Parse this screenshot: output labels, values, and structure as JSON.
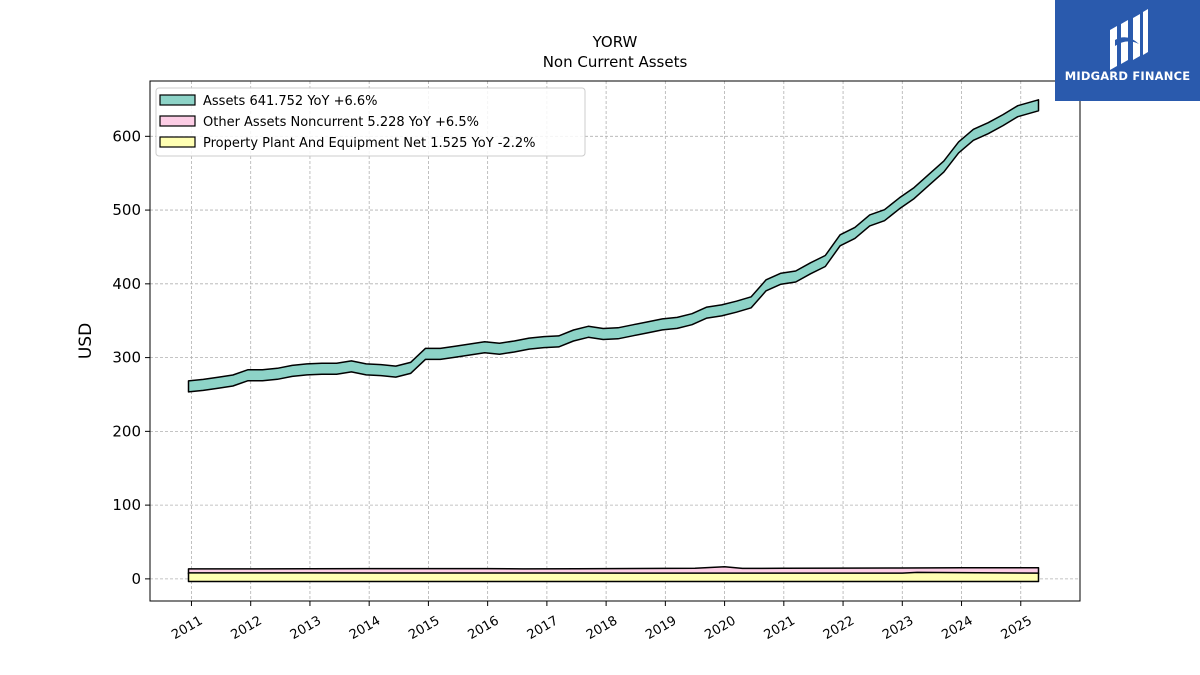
{
  "chart_data": {
    "type": "area",
    "title": "YORW",
    "subtitle": "Non Current  Assets",
    "ylabel": "USD",
    "xlabel": "",
    "ylim": [
      -30,
      675
    ],
    "xlim": [
      2010.3,
      2026.0
    ],
    "yticks": [
      0,
      100,
      200,
      300,
      400,
      500,
      600
    ],
    "xticks": [
      2011,
      2012,
      2013,
      2014,
      2015,
      2016,
      2017,
      2018,
      2019,
      2020,
      2021,
      2022,
      2023,
      2024,
      2025
    ],
    "grid": true,
    "legend_position": "top-left",
    "series": [
      {
        "name": "Assets",
        "legend": "Assets  641.752 YoY +6.6%",
        "fill": "#8dd3c7",
        "points": [
          [
            2010.95,
            261
          ],
          [
            2011.2,
            263
          ],
          [
            2011.45,
            266
          ],
          [
            2011.7,
            269
          ],
          [
            2011.95,
            276
          ],
          [
            2012.2,
            276
          ],
          [
            2012.45,
            278
          ],
          [
            2012.7,
            282
          ],
          [
            2012.95,
            284
          ],
          [
            2013.2,
            285
          ],
          [
            2013.45,
            285
          ],
          [
            2013.7,
            288
          ],
          [
            2013.95,
            284
          ],
          [
            2014.2,
            283
          ],
          [
            2014.45,
            281
          ],
          [
            2014.7,
            286
          ],
          [
            2014.95,
            305
          ],
          [
            2015.2,
            305
          ],
          [
            2015.45,
            308
          ],
          [
            2015.7,
            311
          ],
          [
            2015.95,
            314
          ],
          [
            2016.2,
            312
          ],
          [
            2016.45,
            315
          ],
          [
            2016.7,
            319
          ],
          [
            2016.95,
            321
          ],
          [
            2017.2,
            322
          ],
          [
            2017.45,
            330
          ],
          [
            2017.7,
            335
          ],
          [
            2017.95,
            332
          ],
          [
            2018.2,
            333
          ],
          [
            2018.45,
            337
          ],
          [
            2018.7,
            341
          ],
          [
            2018.95,
            345
          ],
          [
            2019.2,
            347
          ],
          [
            2019.45,
            352
          ],
          [
            2019.7,
            361
          ],
          [
            2019.95,
            364
          ],
          [
            2020.2,
            369
          ],
          [
            2020.45,
            375
          ],
          [
            2020.7,
            398
          ],
          [
            2020.95,
            407
          ],
          [
            2021.2,
            410
          ],
          [
            2021.45,
            421
          ],
          [
            2021.7,
            431
          ],
          [
            2021.95,
            459
          ],
          [
            2022.2,
            469
          ],
          [
            2022.45,
            486
          ],
          [
            2022.7,
            493
          ],
          [
            2022.95,
            509
          ],
          [
            2023.2,
            523
          ],
          [
            2023.45,
            541
          ],
          [
            2023.7,
            559
          ],
          [
            2023.95,
            585
          ],
          [
            2024.2,
            602
          ],
          [
            2024.45,
            611
          ],
          [
            2024.7,
            622
          ],
          [
            2024.95,
            634
          ],
          [
            2025.3,
            642
          ]
        ]
      },
      {
        "name": "Other Assets Noncurrent",
        "legend": "Other Assets Noncurrent  5.228 YoY +6.5%",
        "fill": "#fccde5",
        "points": [
          [
            2010.95,
            3.5
          ],
          [
            2012.0,
            3.6
          ],
          [
            2013.0,
            3.7
          ],
          [
            2014.0,
            3.9
          ],
          [
            2015.0,
            4.0
          ],
          [
            2016.0,
            4.0
          ],
          [
            2016.6,
            3.6
          ],
          [
            2017.5,
            3.8
          ],
          [
            2018.5,
            4.1
          ],
          [
            2019.5,
            4.4
          ],
          [
            2020.0,
            6.5
          ],
          [
            2020.3,
            4.2
          ],
          [
            2021.0,
            4.3
          ],
          [
            2022.0,
            4.6
          ],
          [
            2023.0,
            4.8
          ],
          [
            2024.0,
            5.0
          ],
          [
            2025.3,
            5.228
          ]
        ]
      },
      {
        "name": "Property Plant And Equipment Net",
        "legend": "Property Plant And Equipment Net  1.525 YoY -2.2%",
        "fill": "#ffffb3",
        "points": [
          [
            2010.95,
            1.6
          ],
          [
            2013.0,
            1.6
          ],
          [
            2015.0,
            1.55
          ],
          [
            2017.0,
            1.55
          ],
          [
            2019.0,
            1.5
          ],
          [
            2021.0,
            1.5
          ],
          [
            2023.0,
            1.5
          ],
          [
            2023.25,
            1.8
          ],
          [
            2025.3,
            1.525
          ]
        ]
      }
    ]
  },
  "logo": {
    "text": "MIDGARD FINANCE"
  }
}
